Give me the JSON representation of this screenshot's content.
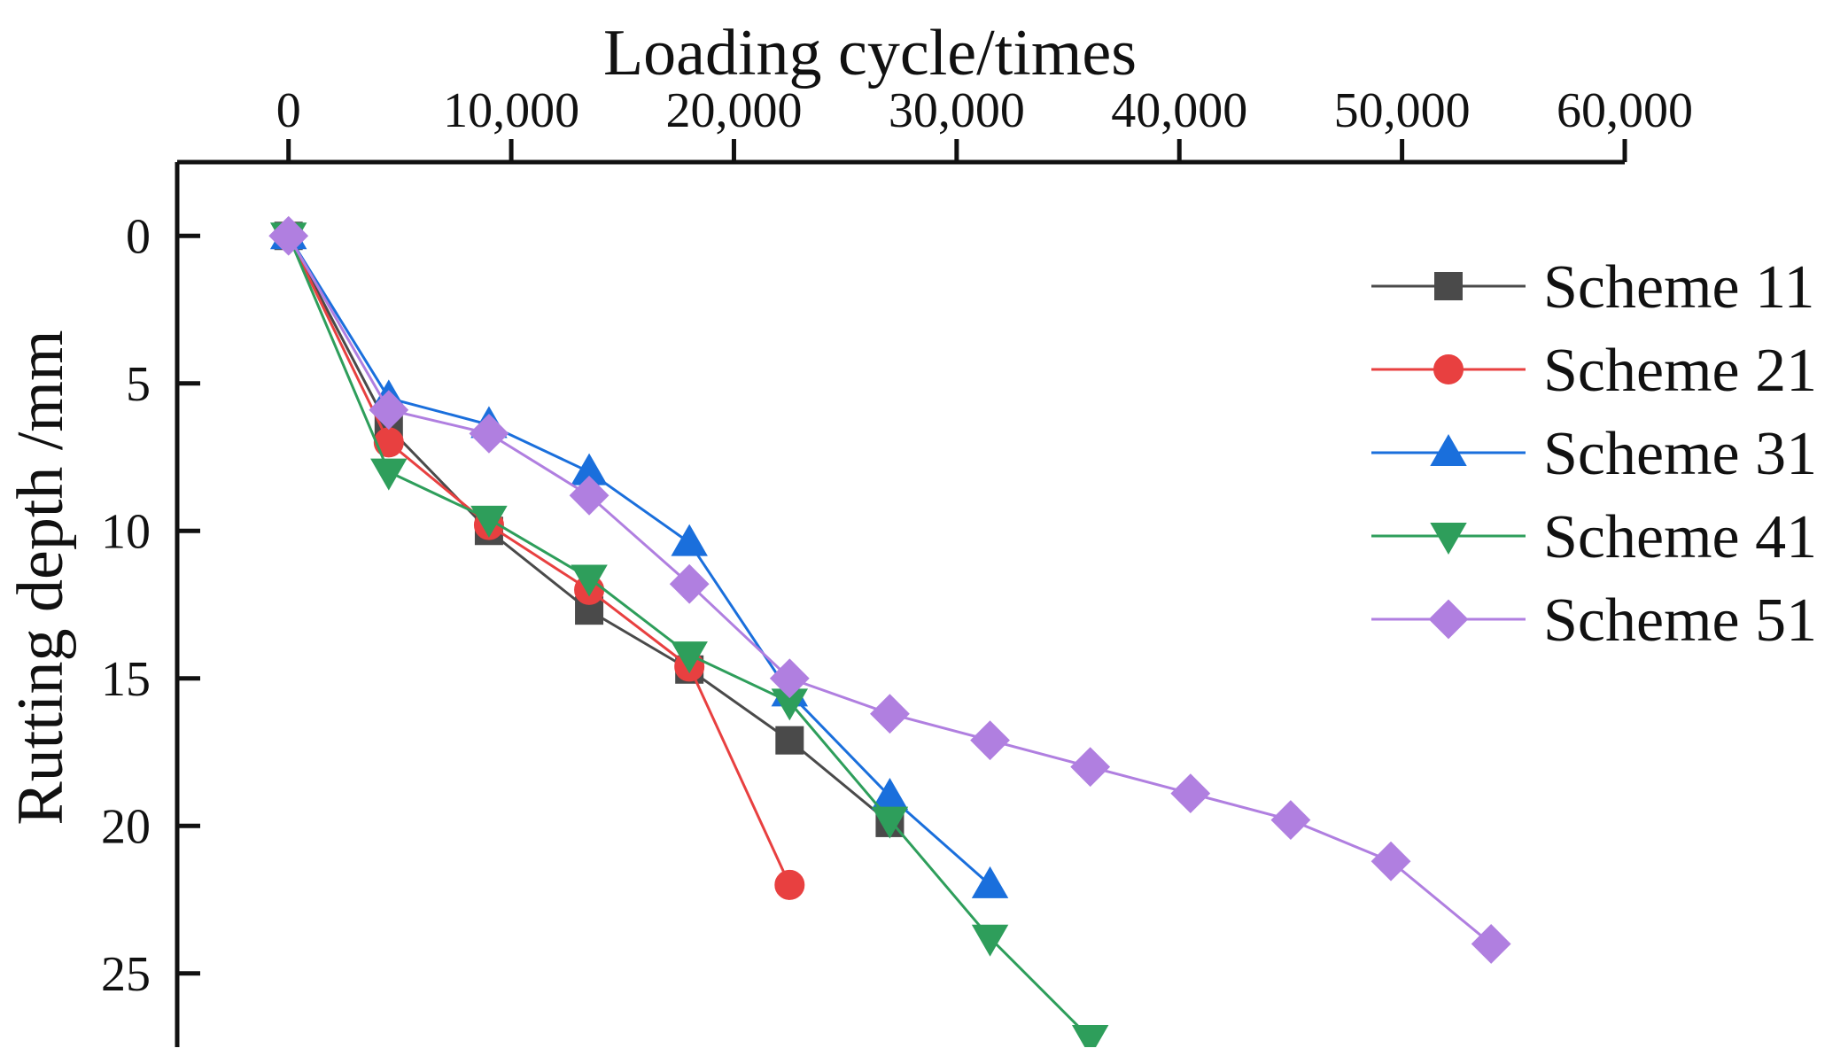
{
  "chart_data": {
    "type": "line",
    "title": "",
    "xlabel": "Loading cycle/times",
    "ylabel": "Rutting depth /mm",
    "xlim": [
      -5000,
      60000
    ],
    "ylim": [
      -2.5,
      27.5
    ],
    "x_axis_position": "top",
    "y_axis_inverted": true,
    "grid": false,
    "legend_position": "top-right",
    "x_ticks": [
      0,
      10000,
      20000,
      30000,
      40000,
      50000,
      60000
    ],
    "x_tick_labels": [
      "0",
      "10,000",
      "20,000",
      "30,000",
      "40,000",
      "50,000",
      "60,000"
    ],
    "y_ticks": [
      0,
      5,
      10,
      15,
      20,
      25
    ],
    "y_tick_labels": [
      "0",
      "5",
      "10",
      "15",
      "20",
      "25"
    ],
    "series": [
      {
        "name": "Scheme 11",
        "color": "#4a4a4a",
        "marker": "square",
        "x": [
          0,
          4500,
          9000,
          13500,
          18000,
          22500,
          27000
        ],
        "values": [
          0,
          6.5,
          10,
          12.7,
          14.7,
          17.1,
          19.9
        ]
      },
      {
        "name": "Scheme 21",
        "color": "#e84040",
        "marker": "circle",
        "x": [
          0,
          4500,
          9000,
          13500,
          18000,
          22500
        ],
        "values": [
          0,
          7,
          9.8,
          12,
          14.6,
          22
        ]
      },
      {
        "name": "Scheme 31",
        "color": "#1a6fdc",
        "marker": "triangle-up",
        "x": [
          0,
          4500,
          9000,
          13500,
          18000,
          22500,
          27000,
          31500
        ],
        "values": [
          0,
          5.5,
          6.4,
          8,
          10.4,
          15.5,
          19,
          22
        ]
      },
      {
        "name": "Scheme 41",
        "color": "#2e9e5b",
        "marker": "triangle-down",
        "x": [
          0,
          4500,
          9000,
          13500,
          18000,
          22500,
          27000,
          31500,
          36000
        ],
        "values": [
          0,
          8,
          9.6,
          11.6,
          14.2,
          15.8,
          19.8,
          23.8,
          27.2
        ]
      },
      {
        "name": "Scheme 51",
        "color": "#b07fe0",
        "marker": "diamond",
        "x": [
          0,
          4500,
          9000,
          13500,
          18000,
          22500,
          27000,
          31500,
          36000,
          40500,
          45000,
          49500,
          54000
        ],
        "values": [
          0,
          5.9,
          6.7,
          8.8,
          11.8,
          15,
          16.2,
          17.1,
          18,
          18.9,
          19.8,
          21.2,
          24
        ]
      }
    ]
  }
}
